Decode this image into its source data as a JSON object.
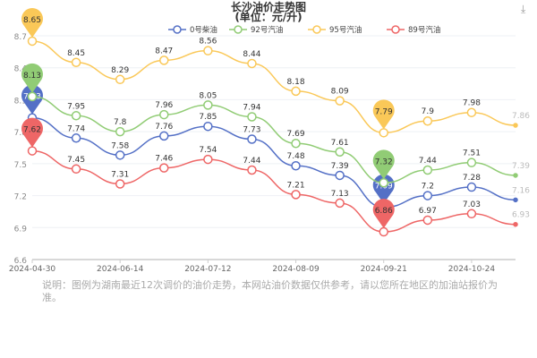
{
  "chart_data": {
    "type": "line",
    "title": "长沙油价走势图",
    "subtitle": "(单位：元/升)",
    "categories": [
      "2024-04-30",
      "",
      "2024-06-14",
      "",
      "2024-07-12",
      "",
      "2024-08-09",
      "",
      "2024-09-21",
      "",
      "2024-10-24",
      ""
    ],
    "ylim": [
      6.6,
      8.7
    ],
    "yticks": [
      "6.6",
      "6.9",
      "7.2",
      "7.5",
      "7.8",
      "8.1",
      "8.4",
      "8.7"
    ],
    "grid": true,
    "legend_position": "top",
    "smooth": true,
    "series": [
      {
        "name": "0号柴油",
        "color": "#5470c6",
        "values": [
          7.93,
          7.74,
          7.58,
          7.76,
          7.85,
          7.73,
          7.48,
          7.39,
          7.09,
          7.2,
          7.28,
          7.16
        ]
      },
      {
        "name": "92号汽油",
        "color": "#91cc75",
        "values": [
          8.13,
          7.95,
          7.8,
          7.96,
          8.05,
          7.94,
          7.69,
          7.61,
          7.32,
          7.44,
          7.51,
          7.39
        ]
      },
      {
        "name": "95号汽油",
        "color": "#fac858",
        "values": [
          8.65,
          8.45,
          8.29,
          8.47,
          8.56,
          8.44,
          8.18,
          8.09,
          7.79,
          7.9,
          7.98,
          7.86
        ]
      },
      {
        "name": "89号汽油",
        "color": "#ee6666",
        "values": [
          7.62,
          7.45,
          7.31,
          7.46,
          7.54,
          7.44,
          7.21,
          7.13,
          6.86,
          6.97,
          7.03,
          6.93
        ]
      }
    ],
    "markers": [
      "max",
      "min"
    ]
  },
  "note": "说明：图例为湖南最近12次调价的油价走势，本网站油价数据仅供参考，请以您所在地区的加油站报价为准。",
  "toolbar": {
    "download_icon": "download-icon"
  }
}
